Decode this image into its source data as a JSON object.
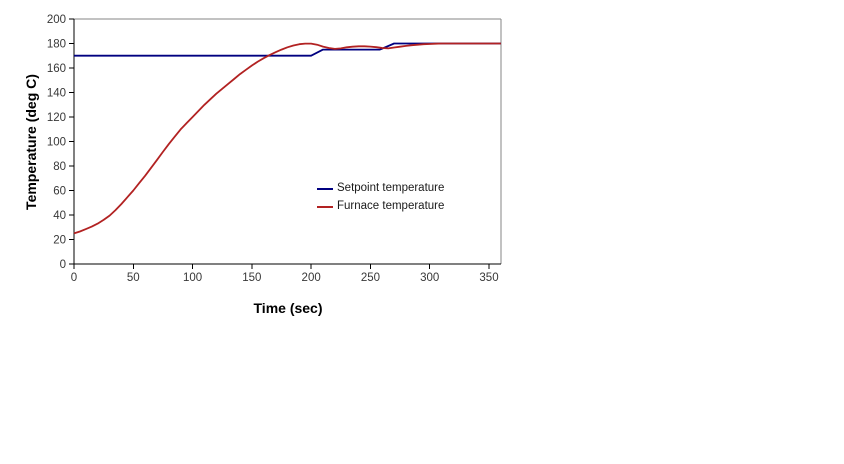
{
  "chart_data": {
    "type": "line",
    "title": "",
    "xlabel": "Time (sec)",
    "ylabel": "Temperature (deg C)",
    "xlim": [
      0,
      360
    ],
    "ylim": [
      0,
      200
    ],
    "x_ticks": [
      0,
      50,
      100,
      150,
      200,
      250,
      300,
      350
    ],
    "y_ticks": [
      0,
      20,
      40,
      60,
      80,
      100,
      120,
      140,
      160,
      180,
      200
    ],
    "grid": false,
    "legend_position": "inside-center-right",
    "series": [
      {
        "name": "Setpoint temperature",
        "color": "#000080",
        "points": [
          [
            0,
            170
          ],
          [
            200,
            170
          ],
          [
            210,
            175
          ],
          [
            258,
            175
          ],
          [
            270,
            180
          ],
          [
            360,
            180
          ]
        ]
      },
      {
        "name": "Furnace temperature",
        "color": "#B22222",
        "points": [
          [
            0,
            25
          ],
          [
            5,
            26.5
          ],
          [
            10,
            28.5
          ],
          [
            15,
            30.5
          ],
          [
            20,
            33
          ],
          [
            25,
            36
          ],
          [
            30,
            39.5
          ],
          [
            35,
            44
          ],
          [
            40,
            49
          ],
          [
            45,
            54.5
          ],
          [
            50,
            60
          ],
          [
            55,
            66
          ],
          [
            60,
            72
          ],
          [
            65,
            78.5
          ],
          [
            70,
            85
          ],
          [
            75,
            91.5
          ],
          [
            80,
            98
          ],
          [
            85,
            104
          ],
          [
            90,
            110
          ],
          [
            95,
            115
          ],
          [
            100,
            120
          ],
          [
            105,
            125
          ],
          [
            110,
            130
          ],
          [
            115,
            134.5
          ],
          [
            120,
            139
          ],
          [
            125,
            143
          ],
          [
            130,
            147
          ],
          [
            135,
            151
          ],
          [
            140,
            155
          ],
          [
            145,
            158.5
          ],
          [
            150,
            162
          ],
          [
            155,
            165.2
          ],
          [
            160,
            168
          ],
          [
            165,
            170.5
          ],
          [
            170,
            172.9
          ],
          [
            175,
            175
          ],
          [
            180,
            176.9
          ],
          [
            185,
            178.4
          ],
          [
            190,
            179.4
          ],
          [
            195,
            179.9
          ],
          [
            200,
            179.9
          ],
          [
            205,
            179
          ],
          [
            210,
            177.5
          ],
          [
            215,
            176.3
          ],
          [
            220,
            175.6
          ],
          [
            225,
            176
          ],
          [
            230,
            176.9
          ],
          [
            235,
            177.4
          ],
          [
            240,
            177.7
          ],
          [
            245,
            177.7
          ],
          [
            250,
            177.5
          ],
          [
            255,
            177
          ],
          [
            260,
            176.3
          ],
          [
            265,
            176
          ],
          [
            270,
            176.7
          ],
          [
            275,
            177.4
          ],
          [
            280,
            178
          ],
          [
            285,
            178.6
          ],
          [
            290,
            179
          ],
          [
            295,
            179.4
          ],
          [
            300,
            179.6
          ],
          [
            305,
            179.8
          ],
          [
            310,
            180
          ],
          [
            320,
            180
          ],
          [
            330,
            180
          ],
          [
            340,
            180
          ],
          [
            350,
            180
          ],
          [
            360,
            180
          ]
        ]
      }
    ]
  },
  "colors": {
    "background": "#ffffff",
    "plot_border": "#868686",
    "axis_line": "#000000",
    "tick_label": "#383838"
  }
}
